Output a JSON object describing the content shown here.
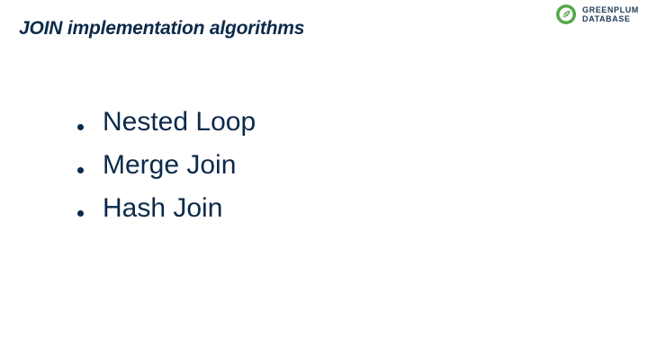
{
  "slide": {
    "title": "JOIN implementation algorithms",
    "logo": {
      "line1": "GREENPLUM",
      "line2": "DATABASE",
      "icon": "greenplum-logo-icon",
      "accent_color": "#52a84a",
      "text_color": "#1f3b57"
    },
    "bullets": [
      {
        "label": "Nested Loop"
      },
      {
        "label": "Merge Join"
      },
      {
        "label": "Hash Join"
      }
    ],
    "text_color": "#0b2a4a"
  }
}
